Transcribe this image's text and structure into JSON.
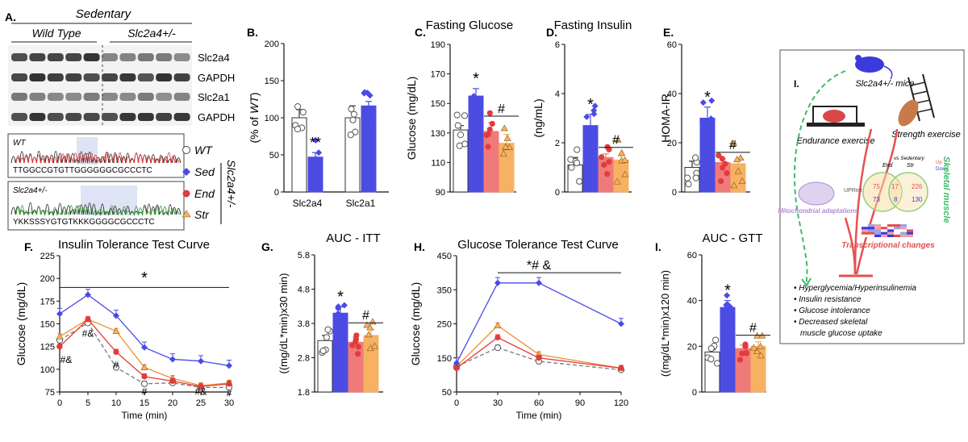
{
  "colors": {
    "wt": "#ffffff",
    "wt_line": "#777777",
    "sed": "#4a4ae6",
    "sed_bar": "#4c4ce3",
    "end": "#e23b3b",
    "end_bar": "#f07a7a",
    "str": "#e8922c",
    "str_bar": "#f6b262",
    "schematic_green": "#3dbb6d",
    "schematic_red": "#e55050",
    "schematic_purple": "#b08ad6"
  },
  "panelA": {
    "letter": "A.",
    "title": "Sedentary",
    "group_wt": "Wild Type",
    "group_ko": "Slc2a4+/-",
    "blot_labels": [
      "Slc2a4",
      "GAPDH",
      "Slc2a1",
      "GAPDH"
    ],
    "seq_wt_label": "WT",
    "seq_wt": "TTGGCCGTGTTGGGGGGCGCCCTC",
    "seq_ko_label": "Slc2a4+/-",
    "seq_ko": "YKKSSSYGTGTKKKGGGGCGCCCTC"
  },
  "legend": {
    "items": [
      {
        "key": "wt",
        "label": "WT"
      },
      {
        "key": "sed",
        "label": "Sed"
      },
      {
        "key": "end",
        "label": "End"
      },
      {
        "key": "str",
        "label": "Str"
      }
    ],
    "side_label": "Slc2a4+/-"
  },
  "schematic": {
    "letter": "I.",
    "mice_label": "Slc2a4+/- mice",
    "endurance": "Endurance exercise",
    "strength": "Strength exercise",
    "uprmt": "UPRmt",
    "mito": "Mitochondrial adaptations",
    "vs_sed": "vs Sedentary",
    "end": "End",
    "str": "Str",
    "up": "Up",
    "down": "Down",
    "venn_up": [
      "75",
      "17",
      "226"
    ],
    "venn_down": [
      "73",
      "8",
      "130"
    ],
    "transcriptional": "Transcriptional changes",
    "skeletal": "Skeletal muscle",
    "bullets": [
      "Hyperglycemia/Hyperinsulinemia",
      "Insulin resistance",
      "Glucose intolerance",
      "Decreased skeletal",
      "muscle glucose uptake"
    ]
  },
  "chart_data": [
    {
      "panel": "B.",
      "type": "bar",
      "title": "",
      "ylabel": "(% of WT)",
      "ylim": [
        0,
        200
      ],
      "yticks": [
        0,
        50,
        100,
        150,
        200
      ],
      "categories": [
        "Slc2a4",
        "Slc2a1"
      ],
      "series": [
        {
          "name": "WT",
          "values": [
            100,
            100
          ],
          "err": [
            11,
            16
          ]
        },
        {
          "name": "Sed",
          "values": [
            47,
            116
          ],
          "err": [
            6,
            6
          ]
        }
      ],
      "annotations": [
        "**"
      ]
    },
    {
      "panel": "C.",
      "type": "bar",
      "title": "Fasting Glucose",
      "ylabel": "Glucose (mg/dL)",
      "ylim": [
        90,
        190
      ],
      "yticks": [
        90,
        110,
        130,
        150,
        170,
        190
      ],
      "categories": [
        "WT",
        "Sed",
        "End",
        "Str"
      ],
      "values": [
        132,
        155,
        131,
        123
      ],
      "err": [
        3,
        5,
        6,
        6
      ],
      "annotations": [
        "*",
        "#"
      ]
    },
    {
      "panel": "D.",
      "type": "bar",
      "title": "Fasting  Insulin",
      "ylabel": "(ng/mL)",
      "ylim": [
        0,
        6
      ],
      "yticks": [
        0,
        2,
        4,
        6
      ],
      "categories": [
        "WT",
        "Sed",
        "End",
        "Str"
      ],
      "values": [
        1.1,
        2.7,
        1.4,
        1.3
      ],
      "err": [
        0.3,
        0.45,
        0.15,
        0.15
      ],
      "annotations": [
        "*",
        "#"
      ]
    },
    {
      "panel": "E.",
      "type": "bar",
      "title": "",
      "ylabel": "HOMA-IR",
      "ylim": [
        0,
        60
      ],
      "yticks": [
        0,
        20,
        40,
        60
      ],
      "categories": [
        "WT",
        "Sed",
        "End",
        "Str"
      ],
      "values": [
        10,
        30,
        12,
        11.5
      ],
      "err": [
        2.5,
        4.5,
        1.5,
        1.5
      ],
      "annotations": [
        "*",
        "#"
      ]
    },
    {
      "panel": "F.",
      "type": "line",
      "title": "Insulin  Tolerance Test Curve",
      "xlabel": "Time (min)",
      "ylabel": "Glucose (mg/dL)",
      "xlim": [
        0,
        30
      ],
      "ylim": [
        75,
        225
      ],
      "xticks": [
        0,
        5,
        10,
        15,
        20,
        25,
        30
      ],
      "yticks": [
        75,
        100,
        125,
        150,
        175,
        200,
        225
      ],
      "x": [
        0,
        5,
        10,
        15,
        20,
        25,
        30
      ],
      "series": [
        {
          "name": "WT",
          "values": [
            132,
            151,
            102,
            84,
            85,
            80,
            80
          ]
        },
        {
          "name": "Sed",
          "values": [
            161,
            182,
            159,
            124,
            111,
            109,
            104
          ]
        },
        {
          "name": "End",
          "values": [
            125,
            155,
            119,
            92,
            87,
            81,
            84
          ]
        },
        {
          "name": "Str",
          "values": [
            136,
            155,
            142,
            102,
            90,
            82,
            85
          ]
        }
      ],
      "annotations": [
        "*",
        "#&",
        "#&",
        "#",
        "#",
        "#&",
        "#"
      ]
    },
    {
      "panel": "G.",
      "type": "bar",
      "title": "AUC - ITT",
      "ylabel": "((mg/dL*min)x30 min)",
      "ylim": [
        1.8,
        5.8
      ],
      "yticks": [
        1.8,
        2.8,
        3.8,
        4.8,
        5.8
      ],
      "categories": [
        "WT",
        "Sed",
        "End",
        "Str"
      ],
      "values": [
        3.3,
        4.1,
        3.25,
        3.45
      ],
      "err": [
        0.15,
        0.18,
        0.15,
        0.18
      ],
      "annotations": [
        "*",
        "#"
      ]
    },
    {
      "panel": "H.",
      "type": "line",
      "title": "Glucose Tolerance  Test Curve",
      "xlabel": "Time (min)",
      "ylabel": "Glucose (mg/dL)",
      "xlim": [
        0,
        120
      ],
      "ylim": [
        50,
        450
      ],
      "xticks": [
        0,
        30,
        60,
        90,
        120
      ],
      "yticks": [
        50,
        150,
        250,
        350,
        450
      ],
      "x": [
        0,
        30,
        60,
        120
      ],
      "series": [
        {
          "name": "WT",
          "values": [
            125,
            180,
            140,
            115
          ]
        },
        {
          "name": "Sed",
          "values": [
            135,
            370,
            370,
            250
          ]
        },
        {
          "name": "End",
          "values": [
            120,
            210,
            150,
            120
          ]
        },
        {
          "name": "Str",
          "values": [
            125,
            245,
            160,
            120
          ]
        }
      ],
      "annotations": [
        "*# &"
      ]
    },
    {
      "panel": "I.",
      "type": "bar",
      "title": "AUC - GTT",
      "ylabel": "((mg/dL*min)x120 min)",
      "ylim": [
        0,
        60
      ],
      "yticks": [
        0,
        20,
        40,
        60
      ],
      "categories": [
        "WT",
        "Sed",
        "End",
        "Str"
      ],
      "values": [
        17.5,
        37,
        19,
        20
      ],
      "err": [
        1,
        3,
        1.5,
        2
      ],
      "annotations": [
        "*",
        "#"
      ]
    }
  ]
}
